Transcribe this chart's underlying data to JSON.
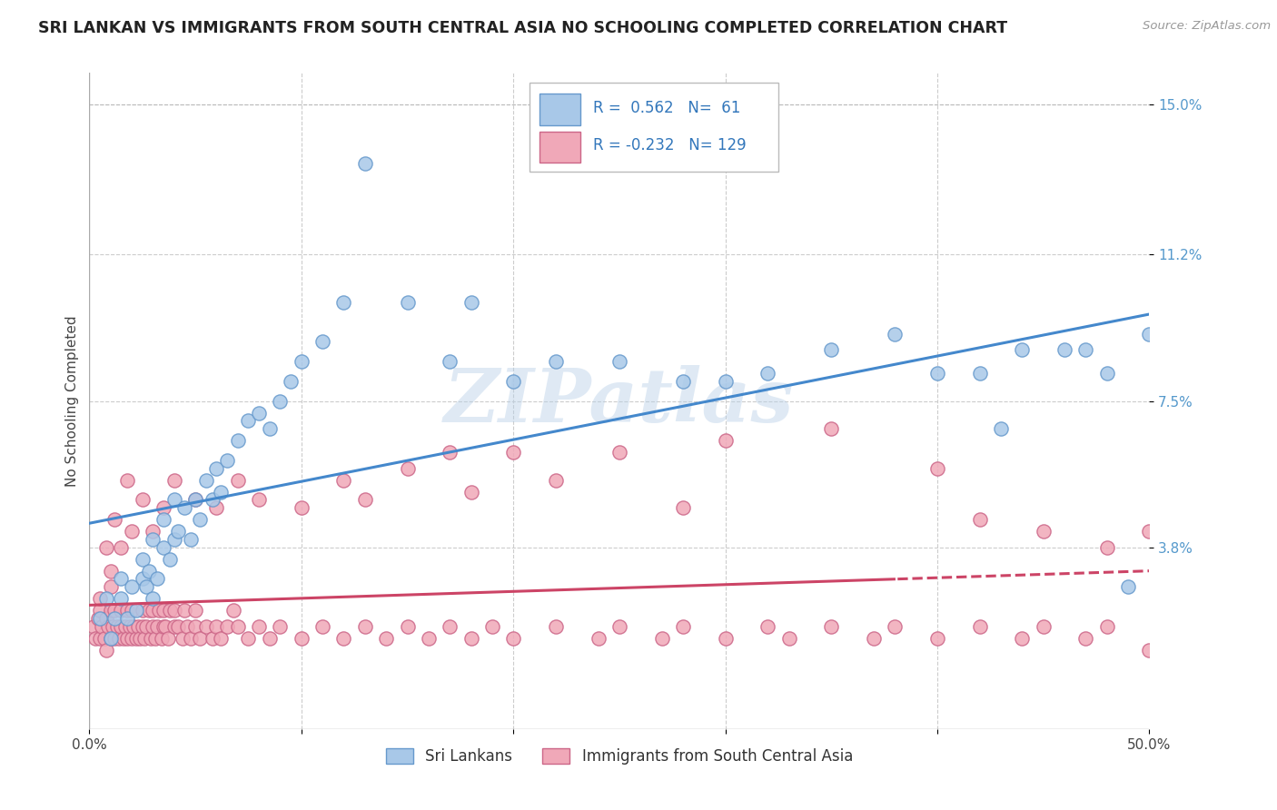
{
  "title": "SRI LANKAN VS IMMIGRANTS FROM SOUTH CENTRAL ASIA NO SCHOOLING COMPLETED CORRELATION CHART",
  "source": "Source: ZipAtlas.com",
  "ylabel": "No Schooling Completed",
  "xlim": [
    0.0,
    0.5
  ],
  "ylim": [
    -0.008,
    0.158
  ],
  "ytick_positions": [
    0.038,
    0.075,
    0.112,
    0.15
  ],
  "ytick_labels": [
    "3.8%",
    "7.5%",
    "11.2%",
    "15.0%"
  ],
  "blue_R": 0.562,
  "blue_N": 61,
  "pink_R": -0.232,
  "pink_N": 129,
  "blue_label": "Sri Lankans",
  "pink_label": "Immigrants from South Central Asia",
  "blue_color": "#a8c8e8",
  "pink_color": "#f0a8b8",
  "blue_edge": "#6699cc",
  "pink_edge": "#cc6688",
  "trend_blue": "#4488cc",
  "trend_pink": "#cc4466",
  "watermark": "ZIPatlas",
  "blue_x": [
    0.005,
    0.008,
    0.01,
    0.012,
    0.015,
    0.015,
    0.018,
    0.02,
    0.022,
    0.025,
    0.025,
    0.027,
    0.028,
    0.03,
    0.03,
    0.032,
    0.035,
    0.035,
    0.038,
    0.04,
    0.04,
    0.042,
    0.045,
    0.048,
    0.05,
    0.052,
    0.055,
    0.058,
    0.06,
    0.062,
    0.065,
    0.07,
    0.075,
    0.08,
    0.085,
    0.09,
    0.095,
    0.1,
    0.11,
    0.12,
    0.13,
    0.15,
    0.17,
    0.18,
    0.2,
    0.22,
    0.25,
    0.28,
    0.3,
    0.32,
    0.35,
    0.38,
    0.4,
    0.42,
    0.43,
    0.44,
    0.46,
    0.47,
    0.48,
    0.49,
    0.5
  ],
  "blue_y": [
    0.02,
    0.025,
    0.015,
    0.02,
    0.025,
    0.03,
    0.02,
    0.028,
    0.022,
    0.03,
    0.035,
    0.028,
    0.032,
    0.025,
    0.04,
    0.03,
    0.038,
    0.045,
    0.035,
    0.04,
    0.05,
    0.042,
    0.048,
    0.04,
    0.05,
    0.045,
    0.055,
    0.05,
    0.058,
    0.052,
    0.06,
    0.065,
    0.07,
    0.072,
    0.068,
    0.075,
    0.08,
    0.085,
    0.09,
    0.1,
    0.135,
    0.1,
    0.085,
    0.1,
    0.08,
    0.085,
    0.085,
    0.08,
    0.08,
    0.082,
    0.088,
    0.092,
    0.082,
    0.082,
    0.068,
    0.088,
    0.088,
    0.088,
    0.082,
    0.028,
    0.092
  ],
  "pink_x": [
    0.002,
    0.003,
    0.004,
    0.005,
    0.005,
    0.006,
    0.007,
    0.008,
    0.008,
    0.009,
    0.01,
    0.01,
    0.011,
    0.012,
    0.012,
    0.013,
    0.014,
    0.015,
    0.015,
    0.016,
    0.017,
    0.018,
    0.018,
    0.019,
    0.02,
    0.02,
    0.021,
    0.022,
    0.023,
    0.024,
    0.025,
    0.025,
    0.026,
    0.027,
    0.028,
    0.029,
    0.03,
    0.03,
    0.031,
    0.032,
    0.033,
    0.034,
    0.035,
    0.035,
    0.036,
    0.037,
    0.038,
    0.04,
    0.04,
    0.042,
    0.044,
    0.045,
    0.046,
    0.048,
    0.05,
    0.05,
    0.052,
    0.055,
    0.058,
    0.06,
    0.062,
    0.065,
    0.068,
    0.07,
    0.075,
    0.08,
    0.085,
    0.09,
    0.1,
    0.11,
    0.12,
    0.13,
    0.14,
    0.15,
    0.16,
    0.17,
    0.18,
    0.19,
    0.2,
    0.22,
    0.24,
    0.25,
    0.27,
    0.28,
    0.3,
    0.32,
    0.33,
    0.35,
    0.37,
    0.38,
    0.4,
    0.42,
    0.44,
    0.45,
    0.47,
    0.48,
    0.5,
    0.008,
    0.01,
    0.012,
    0.015,
    0.018,
    0.02,
    0.025,
    0.03,
    0.035,
    0.04,
    0.05,
    0.06,
    0.07,
    0.08,
    0.1,
    0.12,
    0.13,
    0.15,
    0.17,
    0.18,
    0.2,
    0.22,
    0.25,
    0.28,
    0.3,
    0.35,
    0.4,
    0.42,
    0.45,
    0.48,
    0.5,
    0.005,
    0.01
  ],
  "pink_y": [
    0.018,
    0.015,
    0.02,
    0.015,
    0.022,
    0.018,
    0.015,
    0.02,
    0.012,
    0.018,
    0.015,
    0.022,
    0.018,
    0.015,
    0.022,
    0.018,
    0.015,
    0.018,
    0.022,
    0.015,
    0.018,
    0.015,
    0.022,
    0.018,
    0.015,
    0.022,
    0.018,
    0.015,
    0.018,
    0.015,
    0.022,
    0.018,
    0.015,
    0.018,
    0.022,
    0.015,
    0.018,
    0.022,
    0.015,
    0.018,
    0.022,
    0.015,
    0.018,
    0.022,
    0.018,
    0.015,
    0.022,
    0.018,
    0.022,
    0.018,
    0.015,
    0.022,
    0.018,
    0.015,
    0.018,
    0.022,
    0.015,
    0.018,
    0.015,
    0.018,
    0.015,
    0.018,
    0.022,
    0.018,
    0.015,
    0.018,
    0.015,
    0.018,
    0.015,
    0.018,
    0.015,
    0.018,
    0.015,
    0.018,
    0.015,
    0.018,
    0.015,
    0.018,
    0.015,
    0.018,
    0.015,
    0.018,
    0.015,
    0.018,
    0.015,
    0.018,
    0.015,
    0.018,
    0.015,
    0.018,
    0.015,
    0.018,
    0.015,
    0.018,
    0.015,
    0.018,
    0.012,
    0.038,
    0.032,
    0.045,
    0.038,
    0.055,
    0.042,
    0.05,
    0.042,
    0.048,
    0.055,
    0.05,
    0.048,
    0.055,
    0.05,
    0.048,
    0.055,
    0.05,
    0.058,
    0.062,
    0.052,
    0.062,
    0.055,
    0.062,
    0.048,
    0.065,
    0.068,
    0.058,
    0.045,
    0.042,
    0.038,
    0.042,
    0.025,
    0.028
  ]
}
